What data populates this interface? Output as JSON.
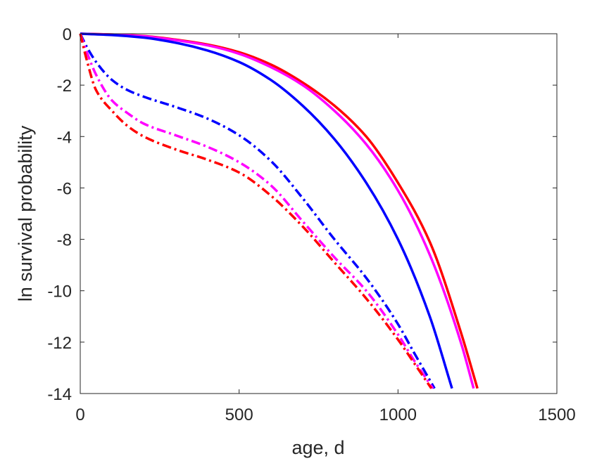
{
  "chart_data": {
    "type": "line",
    "title": "",
    "xlabel": "age, d",
    "ylabel": "ln survival probability",
    "xlim": [
      0,
      1500
    ],
    "ylim": [
      -14,
      0
    ],
    "xticks": [
      0,
      500,
      1000,
      1500
    ],
    "xtick_labels": [
      "0",
      "500",
      "1000",
      "1500"
    ],
    "yticks": [
      0,
      -2,
      -4,
      -6,
      -8,
      -10,
      -12,
      -14
    ],
    "ytick_labels": [
      "0",
      "-2",
      "-4",
      "-6",
      "-8",
      "-10",
      "-12",
      "-14"
    ],
    "grid": false,
    "legend": "none",
    "series": [
      {
        "color": "#ff0000",
        "style": "solid",
        "x": [
          0,
          100,
          200,
          300,
          400,
          500,
          600,
          700,
          800,
          900,
          1000,
          1100,
          1200,
          1250
        ],
        "y": [
          0,
          -0.03,
          -0.09,
          -0.23,
          -0.42,
          -0.72,
          -1.2,
          -1.9,
          -2.8,
          -4.0,
          -5.8,
          -8.1,
          -11.7,
          -13.8
        ]
      },
      {
        "color": "#ff00ff",
        "style": "solid",
        "x": [
          0,
          100,
          200,
          300,
          400,
          500,
          600,
          700,
          800,
          900,
          1000,
          1100,
          1200,
          1238
        ],
        "y": [
          0,
          -0.03,
          -0.1,
          -0.25,
          -0.45,
          -0.78,
          -1.3,
          -2.0,
          -3.0,
          -4.3,
          -6.1,
          -8.6,
          -12.1,
          -13.8
        ]
      },
      {
        "color": "#0000ff",
        "style": "solid",
        "x": [
          0,
          100,
          200,
          300,
          400,
          500,
          600,
          700,
          800,
          900,
          1000,
          1100,
          1170
        ],
        "y": [
          0,
          -0.05,
          -0.15,
          -0.35,
          -0.65,
          -1.1,
          -1.8,
          -2.8,
          -4.1,
          -5.8,
          -8.0,
          -11.0,
          -13.8
        ]
      },
      {
        "color": "#0000ff",
        "style": "dashdot",
        "x": [
          0,
          20,
          50,
          100,
          150,
          200,
          300,
          400,
          500,
          600,
          700,
          800,
          900,
          1000,
          1050,
          1115
        ],
        "y": [
          0,
          -0.5,
          -1.1,
          -1.8,
          -2.2,
          -2.45,
          -2.85,
          -3.3,
          -3.95,
          -4.95,
          -6.4,
          -8.0,
          -9.5,
          -11.3,
          -12.4,
          -13.8
        ]
      },
      {
        "color": "#ff00ff",
        "style": "dashdot",
        "x": [
          0,
          20,
          50,
          100,
          150,
          200,
          300,
          400,
          500,
          600,
          700,
          800,
          900,
          1000,
          1050,
          1110
        ],
        "y": [
          0,
          -0.7,
          -1.6,
          -2.6,
          -3.1,
          -3.5,
          -3.95,
          -4.4,
          -5.0,
          -5.9,
          -7.3,
          -8.7,
          -10.0,
          -11.7,
          -12.7,
          -13.8
        ]
      },
      {
        "color": "#ff0000",
        "style": "dashdot",
        "x": [
          0,
          20,
          50,
          100,
          150,
          200,
          300,
          400,
          500,
          600,
          700,
          800,
          900,
          1000,
          1050,
          1105
        ],
        "y": [
          0,
          -1.0,
          -2.2,
          -3.0,
          -3.6,
          -4.0,
          -4.5,
          -4.9,
          -5.4,
          -6.3,
          -7.5,
          -8.9,
          -10.3,
          -11.9,
          -12.8,
          -13.8
        ]
      }
    ]
  }
}
